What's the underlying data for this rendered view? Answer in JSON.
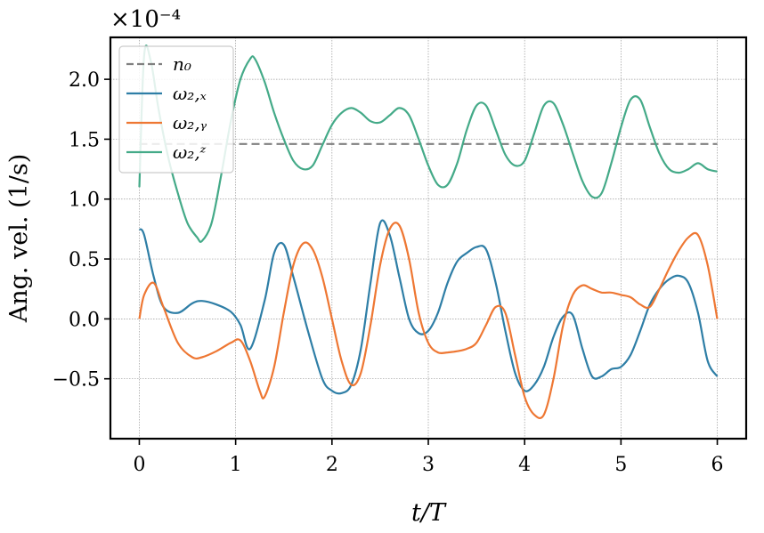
{
  "chart_data": {
    "type": "line",
    "multiplier": "×10⁻⁴",
    "xlabel": "t/T",
    "ylabel": "Ang. vel. (1/s)",
    "xlim": [
      -0.3,
      6.3
    ],
    "ylim": [
      -1.0,
      2.35
    ],
    "xticks": [
      0,
      1,
      2,
      3,
      4,
      5,
      6
    ],
    "yticks": [
      -0.5,
      0.0,
      0.5,
      1.0,
      1.5,
      2.0
    ],
    "ytick_labels": [
      "−0.5",
      "0.0",
      "0.5",
      "1.0",
      "1.5",
      "2.0"
    ],
    "grid": true,
    "legend_position": "top-left",
    "series": [
      {
        "name": "n₀",
        "color": "#808080",
        "dashed": true,
        "x": [
          0,
          6
        ],
        "y": [
          1.46,
          1.46
        ]
      },
      {
        "name": "ω₂,ₓ",
        "color": "#2e7ea6",
        "x": [
          0,
          0.05,
          0.15,
          0.25,
          0.4,
          0.55,
          0.65,
          0.8,
          0.95,
          1.05,
          1.15,
          1.3,
          1.4,
          1.5,
          1.6,
          1.75,
          1.9,
          2.0,
          2.1,
          2.2,
          2.3,
          2.4,
          2.5,
          2.6,
          2.7,
          2.8,
          2.9,
          3.0,
          3.1,
          3.2,
          3.3,
          3.4,
          3.5,
          3.6,
          3.7,
          3.8,
          3.9,
          4.0,
          4.1,
          4.2,
          4.3,
          4.4,
          4.5,
          4.6,
          4.7,
          4.8,
          4.9,
          5.0,
          5.1,
          5.2,
          5.3,
          5.4,
          5.5,
          5.6,
          5.7,
          5.8,
          5.9,
          6.0
        ],
        "y": [
          0.75,
          0.7,
          0.35,
          0.1,
          0.05,
          0.13,
          0.15,
          0.12,
          0.06,
          -0.05,
          -0.25,
          0.15,
          0.55,
          0.62,
          0.35,
          -0.1,
          -0.5,
          -0.6,
          -0.62,
          -0.55,
          -0.25,
          0.3,
          0.8,
          0.7,
          0.35,
          0.0,
          -0.12,
          -0.1,
          0.05,
          0.3,
          0.48,
          0.55,
          0.6,
          0.58,
          0.3,
          -0.1,
          -0.45,
          -0.6,
          -0.55,
          -0.4,
          -0.15,
          0.02,
          0.03,
          -0.25,
          -0.48,
          -0.48,
          -0.42,
          -0.4,
          -0.3,
          -0.1,
          0.12,
          0.25,
          0.33,
          0.36,
          0.3,
          0.05,
          -0.35,
          -0.48
        ]
      },
      {
        "name": "ω₂,ᵧ",
        "color": "#ee7733",
        "x": [
          0,
          0.05,
          0.15,
          0.25,
          0.4,
          0.55,
          0.65,
          0.8,
          0.95,
          1.05,
          1.15,
          1.25,
          1.3,
          1.4,
          1.5,
          1.6,
          1.7,
          1.8,
          1.9,
          2.0,
          2.1,
          2.2,
          2.3,
          2.4,
          2.5,
          2.6,
          2.7,
          2.8,
          2.9,
          3.0,
          3.1,
          3.2,
          3.3,
          3.4,
          3.5,
          3.6,
          3.7,
          3.8,
          3.9,
          4.0,
          4.1,
          4.2,
          4.3,
          4.4,
          4.5,
          4.6,
          4.7,
          4.8,
          4.9,
          5.0,
          5.1,
          5.2,
          5.3,
          5.4,
          5.5,
          5.6,
          5.7,
          5.8,
          5.9,
          6.0
        ],
        "y": [
          0.0,
          0.2,
          0.3,
          0.1,
          -0.2,
          -0.32,
          -0.32,
          -0.27,
          -0.2,
          -0.18,
          -0.35,
          -0.6,
          -0.65,
          -0.4,
          0.05,
          0.45,
          0.63,
          0.58,
          0.35,
          0.0,
          -0.35,
          -0.55,
          -0.45,
          -0.05,
          0.45,
          0.75,
          0.78,
          0.5,
          0.05,
          -0.2,
          -0.28,
          -0.28,
          -0.27,
          -0.25,
          -0.2,
          -0.05,
          0.1,
          0.05,
          -0.3,
          -0.65,
          -0.8,
          -0.8,
          -0.5,
          -0.05,
          0.2,
          0.28,
          0.25,
          0.22,
          0.22,
          0.2,
          0.18,
          0.12,
          0.1,
          0.25,
          0.42,
          0.57,
          0.68,
          0.7,
          0.45,
          0.0
        ]
      },
      {
        "name": "ω₂,ᶻ",
        "color": "#44aa88",
        "x": [
          0,
          0.05,
          0.12,
          0.2,
          0.3,
          0.4,
          0.5,
          0.6,
          0.65,
          0.75,
          0.85,
          0.95,
          1.05,
          1.15,
          1.2,
          1.3,
          1.4,
          1.5,
          1.6,
          1.7,
          1.8,
          1.9,
          2.0,
          2.1,
          2.2,
          2.3,
          2.4,
          2.5,
          2.6,
          2.7,
          2.8,
          2.9,
          3.0,
          3.1,
          3.2,
          3.3,
          3.4,
          3.5,
          3.6,
          3.7,
          3.8,
          3.9,
          4.0,
          4.1,
          4.2,
          4.3,
          4.4,
          4.5,
          4.6,
          4.7,
          4.8,
          4.9,
          5.0,
          5.1,
          5.2,
          5.3,
          5.4,
          5.5,
          5.6,
          5.7,
          5.8,
          5.9,
          6.0
        ],
        "y": [
          1.1,
          2.2,
          2.15,
          1.75,
          1.35,
          1.05,
          0.8,
          0.68,
          0.65,
          0.8,
          1.2,
          1.65,
          2.0,
          2.17,
          2.17,
          1.98,
          1.72,
          1.5,
          1.32,
          1.25,
          1.28,
          1.45,
          1.62,
          1.72,
          1.76,
          1.72,
          1.65,
          1.64,
          1.7,
          1.76,
          1.7,
          1.5,
          1.28,
          1.12,
          1.12,
          1.3,
          1.58,
          1.78,
          1.78,
          1.58,
          1.37,
          1.28,
          1.32,
          1.55,
          1.78,
          1.8,
          1.62,
          1.38,
          1.15,
          1.02,
          1.05,
          1.3,
          1.6,
          1.83,
          1.83,
          1.6,
          1.38,
          1.25,
          1.22,
          1.25,
          1.3,
          1.25,
          1.23
        ]
      }
    ]
  }
}
